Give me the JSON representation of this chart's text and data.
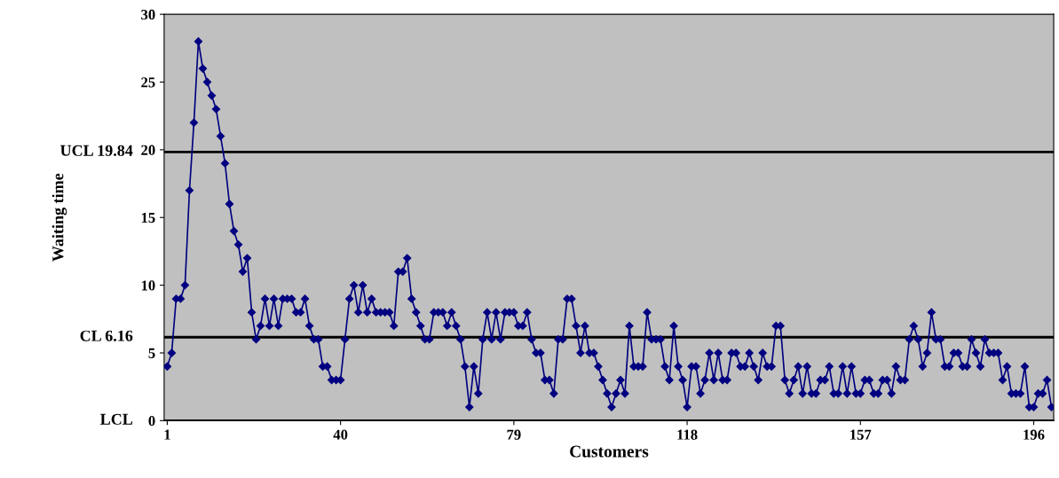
{
  "chart_data": {
    "type": "line",
    "xlabel": "Customers",
    "ylabel": "Waiting time",
    "x": [
      1,
      2,
      3,
      4,
      5,
      6,
      7,
      8,
      9,
      10,
      11,
      12,
      13,
      14,
      15,
      16,
      17,
      18,
      19,
      20,
      21,
      22,
      23,
      24,
      25,
      26,
      27,
      28,
      29,
      30,
      31,
      32,
      33,
      34,
      35,
      36,
      37,
      38,
      39,
      40,
      41,
      42,
      43,
      44,
      45,
      46,
      47,
      48,
      49,
      50,
      51,
      52,
      53,
      54,
      55,
      56,
      57,
      58,
      59,
      60,
      61,
      62,
      63,
      64,
      65,
      66,
      67,
      68,
      69,
      70,
      71,
      72,
      73,
      74,
      75,
      76,
      77,
      78,
      79,
      80,
      81,
      82,
      83,
      84,
      85,
      86,
      87,
      88,
      89,
      90,
      91,
      92,
      93,
      94,
      95,
      96,
      97,
      98,
      99,
      100,
      101,
      102,
      103,
      104,
      105,
      106,
      107,
      108,
      109,
      110,
      111,
      112,
      113,
      114,
      115,
      116,
      117,
      118,
      119,
      120,
      121,
      122,
      123,
      124,
      125,
      126,
      127,
      128,
      129,
      130,
      131,
      132,
      133,
      134,
      135,
      136,
      137,
      138,
      139,
      140,
      141,
      142,
      143,
      144,
      145,
      146,
      147,
      148,
      149,
      150,
      151,
      152,
      153,
      154,
      155,
      156,
      157,
      158,
      159,
      160,
      161,
      162,
      163,
      164,
      165,
      166,
      167,
      168,
      169,
      170,
      171,
      172,
      173,
      174,
      175,
      176,
      177,
      178,
      179,
      180,
      181,
      182,
      183,
      184,
      185,
      186,
      187,
      188,
      189,
      190,
      191,
      192,
      193,
      194,
      195,
      196,
      197,
      198,
      199,
      200
    ],
    "series": [
      {
        "color": "#000080",
        "values": [
          4,
          5,
          9,
          9,
          10,
          17,
          22,
          28,
          26,
          25,
          24,
          23,
          21,
          19,
          16,
          14,
          13,
          11,
          12,
          8,
          6,
          7,
          9,
          7,
          9,
          7,
          9,
          9,
          9,
          8,
          8,
          9,
          7,
          6,
          6,
          4,
          4,
          3,
          3,
          3,
          6,
          9,
          10,
          8,
          10,
          8,
          9,
          8,
          8,
          8,
          8,
          7,
          11,
          11,
          12,
          9,
          8,
          7,
          6,
          6,
          8,
          8,
          8,
          7,
          8,
          7,
          6,
          4,
          1,
          4,
          2,
          6,
          8,
          6,
          8,
          6,
          8,
          8,
          8,
          7,
          7,
          8,
          6,
          5,
          5,
          3,
          3,
          2,
          6,
          6,
          9,
          9,
          7,
          5,
          7,
          5,
          5,
          4,
          3,
          2,
          1,
          2,
          3,
          2,
          7,
          4,
          4,
          4,
          8,
          6,
          6,
          6,
          4,
          3,
          7,
          4,
          3,
          1,
          4,
          4,
          2,
          3,
          5,
          3,
          5,
          3,
          3,
          5,
          5,
          4,
          4,
          5,
          4,
          3,
          5,
          4,
          4,
          7,
          7,
          3,
          2,
          3,
          4,
          2,
          4,
          2,
          2,
          3,
          3,
          4,
          2,
          2,
          4,
          2,
          4,
          2,
          2,
          3,
          3,
          2,
          2,
          3,
          3,
          2,
          4,
          3,
          3,
          6,
          7,
          6,
          4,
          5,
          8,
          6,
          6,
          4,
          4,
          5,
          5,
          4,
          4,
          6,
          5,
          4,
          6,
          5,
          5,
          5,
          3,
          4,
          2,
          2,
          2,
          4,
          1,
          1,
          2,
          2,
          3,
          1
        ]
      }
    ],
    "xlim": [
      0.3,
      200.5
    ],
    "xticks": [
      1,
      40,
      79,
      118,
      157,
      196
    ],
    "ylim": [
      0,
      30
    ],
    "yticks": [
      0,
      5,
      10,
      15,
      20,
      25,
      30
    ],
    "ref_lines": [
      {
        "axis": "y",
        "value": 19.84,
        "label": "UCL 19.84",
        "color": "#000000"
      },
      {
        "axis": "y",
        "value": 6.16,
        "label": "CL 6.16",
        "color": "#000000"
      },
      {
        "axis": "y",
        "value": 0,
        "label": "LCL",
        "color": "#000000"
      }
    ],
    "marker": "diamond",
    "grid": false,
    "legend": false
  }
}
